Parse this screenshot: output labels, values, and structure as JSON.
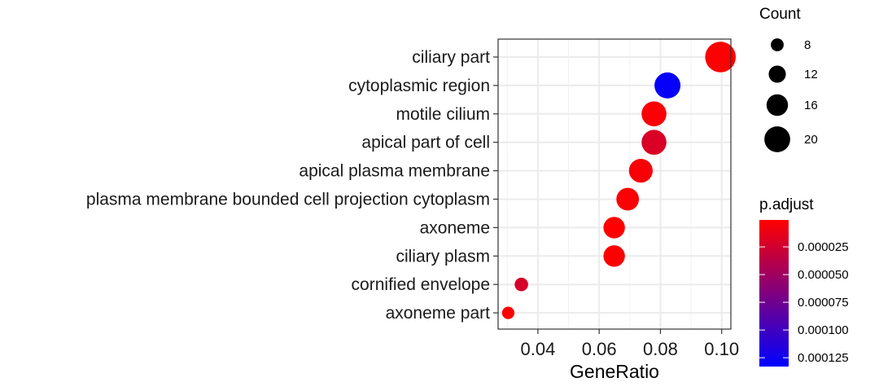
{
  "chart_data": {
    "type": "scatter",
    "xlabel": "GeneRatio",
    "ylabel": "",
    "xlim": [
      0.027,
      0.103
    ],
    "xticks": [
      0.04,
      0.06,
      0.08,
      0.1
    ],
    "xtick_labels": [
      "0.04",
      "0.06",
      "0.08",
      "0.10"
    ],
    "grid": true,
    "legend_position": "right",
    "categories": [
      "ciliary part",
      "cytoplasmic region",
      "motile cilium",
      "apical part of cell",
      "apical plasma membrane",
      "plasma membrane bounded cell projection cytoplasm",
      "axoneme",
      "ciliary plasm",
      "cornified envelope",
      "axoneme part"
    ],
    "points": [
      {
        "category": "ciliary part",
        "gene_ratio": 0.0996,
        "count": 23,
        "p_adjust": 1e-06
      },
      {
        "category": "cytoplasmic region",
        "gene_ratio": 0.0823,
        "count": 19,
        "p_adjust": 0.00013
      },
      {
        "category": "motile cilium",
        "gene_ratio": 0.0779,
        "count": 18,
        "p_adjust": 3e-06
      },
      {
        "category": "apical part of cell",
        "gene_ratio": 0.0779,
        "count": 18,
        "p_adjust": 2e-05
      },
      {
        "category": "apical plasma membrane",
        "gene_ratio": 0.0736,
        "count": 17,
        "p_adjust": 5e-06
      },
      {
        "category": "plasma membrane bounded cell projection cytoplasm",
        "gene_ratio": 0.0693,
        "count": 16,
        "p_adjust": 3e-06
      },
      {
        "category": "axoneme",
        "gene_ratio": 0.0649,
        "count": 15,
        "p_adjust": 1e-06
      },
      {
        "category": "ciliary plasm",
        "gene_ratio": 0.0649,
        "count": 15,
        "p_adjust": 1e-06
      },
      {
        "category": "cornified envelope",
        "gene_ratio": 0.0346,
        "count": 8,
        "p_adjust": 2.2e-05
      },
      {
        "category": "axoneme part",
        "gene_ratio": 0.0303,
        "count": 7,
        "p_adjust": 2e-06
      }
    ],
    "size_legend": {
      "title": "Count",
      "values": [
        8,
        12,
        16,
        20
      ],
      "labels": [
        "8",
        "12",
        "16",
        "20"
      ]
    },
    "color_legend": {
      "title": "p.adjust",
      "range": [
        7e-07,
        0.000133
      ],
      "ticks": [
        2.5e-05,
        5e-05,
        7.5e-05,
        0.0001,
        0.000125
      ],
      "tick_labels": [
        "0.000025",
        "0.000050",
        "0.000075",
        "0.000100",
        "0.000125"
      ],
      "color_low": "#ff0000",
      "color_high": "#0000ff"
    }
  }
}
